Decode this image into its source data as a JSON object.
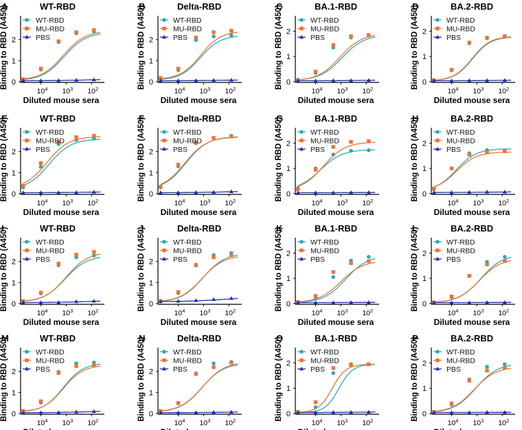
{
  "figure": {
    "colors": {
      "wt": "#2aaab8",
      "mu": "#f07230",
      "pbs": "#1f2fa8",
      "axis": "#000000"
    },
    "shared": {
      "xlabel": "Diluted mouse sera",
      "ylabel": "Binding to RBD (A450)",
      "x_tick_labels": [
        "10^4",
        "10^3",
        "10^2"
      ],
      "x_tick_values": [
        10000,
        1000,
        100
      ],
      "x_direction": "decreasing dilution left to right",
      "x_range_log10": [
        4.8,
        1.6
      ],
      "dilution_points": [
        50000,
        10000,
        2000,
        400,
        80
      ],
      "legend": [
        "WT-RBD",
        "MU-RBD",
        "PBS"
      ],
      "legend_position": "top-left"
    }
  },
  "chart_data": [
    {
      "type": "line",
      "letter": "A",
      "title": "WT-RBD",
      "ylim": [
        0,
        3
      ],
      "y_ticks": [
        0,
        1,
        2
      ],
      "series": [
        {
          "name": "WT-RBD",
          "top": 2.35,
          "ec50": 1200,
          "hill": 1.0,
          "values": [
            0.08,
            0.58,
            1.88,
            2.3,
            2.38
          ]
        },
        {
          "name": "MU-RBD",
          "top": 2.42,
          "ec50": 1300,
          "hill": 1.0,
          "values": [
            0.12,
            0.62,
            1.92,
            2.35,
            2.45
          ]
        },
        {
          "name": "PBS",
          "top": 0.02,
          "ec50": 1,
          "hill": 1,
          "values": [
            0.05,
            0.05,
            0.06,
            0.08,
            0.1
          ]
        }
      ]
    },
    {
      "type": "line",
      "letter": "B",
      "title": "Delta-RBD",
      "ylim": [
        0,
        3
      ],
      "y_ticks": [
        0,
        1,
        2
      ],
      "series": [
        {
          "name": "WT-RBD",
          "top": 2.2,
          "ec50": 1350,
          "hill": 1.1,
          "values": [
            0.12,
            0.55,
            1.98,
            2.15,
            2.2
          ]
        },
        {
          "name": "MU-RBD",
          "top": 2.4,
          "ec50": 1300,
          "hill": 1.1,
          "values": [
            0.18,
            0.62,
            2.1,
            2.35,
            2.42
          ]
        },
        {
          "name": "PBS",
          "top": 0.02,
          "ec50": 1,
          "hill": 1,
          "values": [
            0.05,
            0.05,
            0.06,
            0.07,
            0.08
          ]
        }
      ]
    },
    {
      "type": "line",
      "letter": "C",
      "title": "BA.1-RBD",
      "ylim": [
        0,
        2.5
      ],
      "y_ticks": [
        0,
        1,
        2
      ],
      "series": [
        {
          "name": "WT-RBD",
          "top": 1.85,
          "ec50": 900,
          "hill": 1.0,
          "values": [
            0.08,
            0.35,
            1.35,
            1.75,
            1.82
          ]
        },
        {
          "name": "MU-RBD",
          "top": 1.9,
          "ec50": 1100,
          "hill": 1.0,
          "values": [
            0.05,
            0.4,
            1.45,
            1.8,
            1.85
          ]
        },
        {
          "name": "PBS",
          "top": 0.02,
          "ec50": 1,
          "hill": 1,
          "values": [
            0.04,
            0.04,
            0.05,
            0.05,
            0.06
          ]
        }
      ]
    },
    {
      "type": "line",
      "letter": "D",
      "title": "BA.2-RBD",
      "ylim": [
        0,
        2.5
      ],
      "y_ticks": [
        0,
        1,
        2
      ],
      "series": [
        {
          "name": "WT-RBD",
          "top": 1.78,
          "ec50": 1500,
          "hill": 1.2,
          "values": [
            0.05,
            0.45,
            1.52,
            1.72,
            1.78
          ]
        },
        {
          "name": "MU-RBD",
          "top": 1.8,
          "ec50": 1550,
          "hill": 1.2,
          "values": [
            0.06,
            0.47,
            1.55,
            1.74,
            1.8
          ]
        },
        {
          "name": "PBS",
          "top": 0.02,
          "ec50": 1,
          "hill": 1,
          "values": [
            0.04,
            0.04,
            0.05,
            0.05,
            0.06
          ]
        }
      ]
    },
    {
      "type": "line",
      "letter": "E",
      "title": "WT-RBD",
      "ylim": [
        0,
        3
      ],
      "y_ticks": [
        0,
        1,
        2
      ],
      "series": [
        {
          "name": "WT-RBD",
          "top": 2.6,
          "ec50": 4800,
          "hill": 1.0,
          "values": [
            0.3,
            1.28,
            2.35,
            2.55,
            2.62
          ]
        },
        {
          "name": "MU-RBD",
          "top": 2.72,
          "ec50": 5800,
          "hill": 1.0,
          "values": [
            0.38,
            1.45,
            2.45,
            2.68,
            2.75
          ]
        },
        {
          "name": "PBS",
          "top": 0.02,
          "ec50": 1,
          "hill": 1,
          "values": [
            0.05,
            0.05,
            0.05,
            0.06,
            0.08
          ]
        }
      ]
    },
    {
      "type": "line",
      "letter": "F",
      "title": "Delta-RBD",
      "ylim": [
        0,
        3
      ],
      "y_ticks": [
        0,
        1,
        2
      ],
      "series": [
        {
          "name": "WT-RBD",
          "top": 2.72,
          "ec50": 5000,
          "hill": 1.0,
          "values": [
            0.3,
            1.3,
            2.4,
            2.65,
            2.75
          ]
        },
        {
          "name": "MU-RBD",
          "top": 2.7,
          "ec50": 5500,
          "hill": 1.0,
          "values": [
            0.32,
            1.38,
            2.42,
            2.65,
            2.72
          ]
        },
        {
          "name": "PBS",
          "top": 0.02,
          "ec50": 1,
          "hill": 1,
          "values": [
            0.05,
            0.05,
            0.06,
            0.07,
            0.1
          ]
        }
      ]
    },
    {
      "type": "line",
      "letter": "G",
      "title": "BA.1-RBD",
      "ylim": [
        0,
        2.5
      ],
      "y_ticks": [
        0,
        1,
        2
      ],
      "series": [
        {
          "name": "WT-RBD",
          "top": 1.75,
          "ec50": 6500,
          "hill": 1.0,
          "values": [
            0.22,
            1.0,
            1.55,
            1.7,
            1.72
          ]
        },
        {
          "name": "MU-RBD",
          "top": 2.05,
          "ec50": 5000,
          "hill": 1.0,
          "values": [
            0.18,
            0.95,
            1.85,
            2.05,
            2.08
          ]
        },
        {
          "name": "PBS",
          "top": 0.02,
          "ec50": 1,
          "hill": 1,
          "values": [
            0.04,
            0.04,
            0.04,
            0.05,
            0.05
          ]
        }
      ]
    },
    {
      "type": "line",
      "letter": "H",
      "title": "BA.2-RBD",
      "ylim": [
        0,
        2.5
      ],
      "y_ticks": [
        0,
        1,
        2
      ],
      "series": [
        {
          "name": "WT-RBD",
          "top": 1.78,
          "ec50": 6500,
          "hill": 1.1,
          "values": [
            0.18,
            1.0,
            1.6,
            1.72,
            1.7
          ]
        },
        {
          "name": "MU-RBD",
          "top": 1.65,
          "ec50": 6500,
          "hill": 1.1,
          "values": [
            0.2,
            1.0,
            1.55,
            1.65,
            1.68
          ]
        },
        {
          "name": "PBS",
          "top": 0.02,
          "ec50": 1,
          "hill": 1,
          "values": [
            0.05,
            0.05,
            0.06,
            0.07,
            0.07
          ]
        }
      ]
    },
    {
      "type": "line",
      "letter": "I",
      "title": "WT-RBD",
      "ylim": [
        0,
        3
      ],
      "y_ticks": [
        0,
        1,
        2
      ],
      "series": [
        {
          "name": "WT-RBD",
          "top": 2.28,
          "ec50": 1100,
          "hill": 1.0,
          "values": [
            0.1,
            0.48,
            1.82,
            2.2,
            2.28
          ]
        },
        {
          "name": "MU-RBD",
          "top": 2.45,
          "ec50": 1000,
          "hill": 1.0,
          "values": [
            0.12,
            0.52,
            1.9,
            2.32,
            2.45
          ]
        },
        {
          "name": "PBS",
          "top": 0.02,
          "ec50": 1,
          "hill": 1,
          "values": [
            0.05,
            0.05,
            0.06,
            0.1,
            0.12
          ]
        }
      ]
    },
    {
      "type": "line",
      "letter": "J",
      "title": "Delta-RBD",
      "ylim": [
        0,
        3
      ],
      "y_ticks": [
        0,
        1,
        2
      ],
      "series": [
        {
          "name": "WT-RBD",
          "top": 2.4,
          "ec50": 1050,
          "hill": 1.0,
          "values": [
            0.1,
            0.5,
            1.85,
            2.3,
            2.4
          ]
        },
        {
          "name": "MU-RBD",
          "top": 2.3,
          "ec50": 1150,
          "hill": 1.0,
          "values": [
            0.12,
            0.55,
            1.82,
            2.2,
            2.3
          ]
        },
        {
          "name": "PBS",
          "top": 0.02,
          "ec50": 1,
          "hill": 1,
          "values": [
            0.1,
            0.12,
            0.15,
            0.2,
            0.25
          ]
        }
      ]
    },
    {
      "type": "line",
      "letter": "K",
      "title": "BA.1-RBD",
      "ylim": [
        0,
        2.5
      ],
      "y_ticks": [
        0,
        1,
        2
      ],
      "series": [
        {
          "name": "WT-RBD",
          "top": 1.9,
          "ec50": 650,
          "hill": 1.0,
          "values": [
            0.05,
            0.22,
            1.05,
            1.7,
            1.85
          ]
        },
        {
          "name": "MU-RBD",
          "top": 1.7,
          "ec50": 1000,
          "hill": 1.0,
          "values": [
            0.06,
            0.3,
            1.25,
            1.6,
            1.68
          ]
        },
        {
          "name": "PBS",
          "top": 0.02,
          "ec50": 1,
          "hill": 1,
          "values": [
            0.04,
            0.04,
            0.04,
            0.05,
            0.05
          ]
        }
      ]
    },
    {
      "type": "line",
      "letter": "L",
      "title": "BA.2-RBD",
      "ylim": [
        0,
        2.5
      ],
      "y_ticks": [
        0,
        1,
        2
      ],
      "series": [
        {
          "name": "WT-RBD",
          "top": 1.95,
          "ec50": 700,
          "hill": 1.0,
          "values": [
            0.05,
            0.25,
            1.1,
            1.65,
            1.85
          ]
        },
        {
          "name": "MU-RBD",
          "top": 1.8,
          "ec50": 800,
          "hill": 1.0,
          "values": [
            0.05,
            0.28,
            1.1,
            1.55,
            1.68
          ]
        },
        {
          "name": "PBS",
          "top": 0.02,
          "ec50": 1,
          "hill": 1,
          "values": [
            0.04,
            0.04,
            0.04,
            0.05,
            0.05
          ]
        }
      ]
    },
    {
      "type": "line",
      "letter": "M",
      "title": "WT-RBD",
      "ylim": [
        0,
        3
      ],
      "y_ticks": [
        0,
        1,
        2
      ],
      "series": [
        {
          "name": "WT-RBD",
          "top": 2.4,
          "ec50": 1300,
          "hill": 1.1,
          "values": [
            0.1,
            0.52,
            1.98,
            2.38,
            2.42
          ]
        },
        {
          "name": "MU-RBD",
          "top": 2.3,
          "ec50": 1300,
          "hill": 1.1,
          "values": [
            0.12,
            0.58,
            1.92,
            2.25,
            2.3
          ]
        },
        {
          "name": "PBS",
          "top": 0.02,
          "ec50": 1,
          "hill": 1,
          "values": [
            0.04,
            0.04,
            0.05,
            0.08,
            0.1
          ]
        }
      ]
    },
    {
      "type": "line",
      "letter": "N",
      "title": "Delta-RBD",
      "ylim": [
        0,
        3
      ],
      "y_ticks": [
        0,
        1,
        2
      ],
      "series": [
        {
          "name": "WT-RBD",
          "top": 2.45,
          "ec50": 1100,
          "hill": 1.0,
          "values": [
            0.1,
            0.48,
            1.9,
            2.38,
            2.45
          ]
        },
        {
          "name": "MU-RBD",
          "top": 2.4,
          "ec50": 1150,
          "hill": 1.0,
          "values": [
            0.12,
            0.5,
            1.88,
            2.2,
            2.42
          ]
        },
        {
          "name": "PBS",
          "top": 0.02,
          "ec50": 1,
          "hill": 1,
          "values": [
            0.04,
            0.04,
            0.05,
            0.06,
            0.07
          ]
        }
      ]
    },
    {
      "type": "line",
      "letter": "O",
      "title": "BA.1-RBD",
      "ylim": [
        0,
        2.5
      ],
      "y_ticks": [
        0,
        1,
        2
      ],
      "series": [
        {
          "name": "WT-RBD",
          "top": 1.95,
          "ec50": 1200,
          "hill": 1.6,
          "values": [
            0.05,
            0.25,
            1.6,
            1.95,
            1.95
          ]
        },
        {
          "name": "MU-RBD",
          "top": 1.95,
          "ec50": 2200,
          "hill": 1.6,
          "values": [
            0.06,
            0.45,
            1.8,
            1.92,
            1.95
          ]
        },
        {
          "name": "PBS",
          "top": 0.02,
          "ec50": 1,
          "hill": 1,
          "values": [
            0.04,
            0.04,
            0.05,
            0.05,
            0.06
          ]
        }
      ]
    },
    {
      "type": "line",
      "letter": "P",
      "title": "BA.2-RBD",
      "ylim": [
        0,
        2.5
      ],
      "y_ticks": [
        0,
        1,
        2
      ],
      "series": [
        {
          "name": "WT-RBD",
          "top": 1.98,
          "ec50": 1100,
          "hill": 1.0,
          "values": [
            0.05,
            0.35,
            1.35,
            1.85,
            1.95
          ]
        },
        {
          "name": "MU-RBD",
          "top": 1.85,
          "ec50": 1300,
          "hill": 1.0,
          "values": [
            0.06,
            0.4,
            1.3,
            1.7,
            1.8
          ]
        },
        {
          "name": "PBS",
          "top": 0.02,
          "ec50": 1,
          "hill": 1,
          "values": [
            0.04,
            0.04,
            0.04,
            0.05,
            0.05
          ]
        }
      ]
    }
  ]
}
